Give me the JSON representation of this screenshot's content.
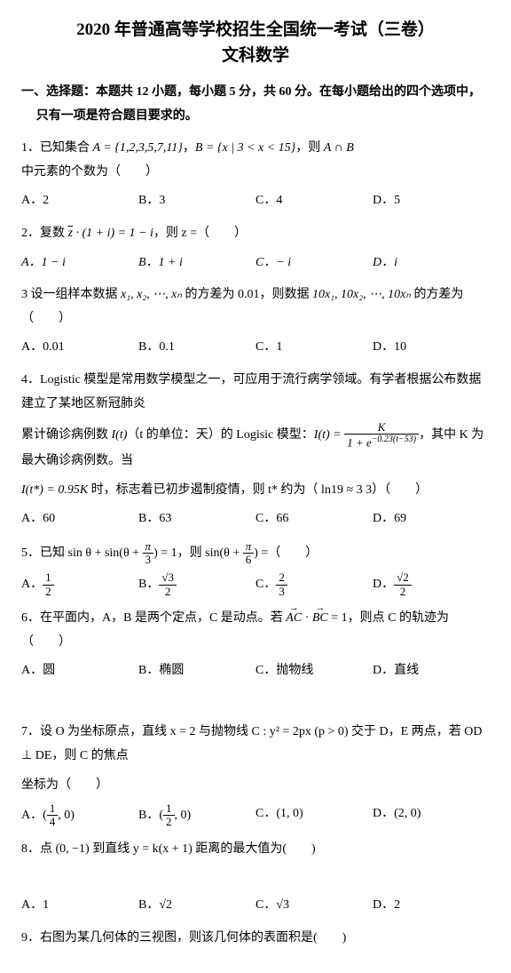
{
  "title_line1": "2020 年普通高等学校招生全国统一考试（三卷）",
  "title_line2": "文科数学",
  "section1": "一、选择题：本题共 12 小题，每小题 5 分，共 60 分。在每小题给出的四个选项中，只有一项是符合题目要求的。",
  "q1": {
    "stem_a": "1．已知集合 ",
    "stem_b": "A = {1,2,3,5,7,11}",
    "stem_c": "，",
    "stem_d": "B = {x | 3 < x < 15}",
    "stem_e": "，则 ",
    "stem_f": "A ∩ B",
    "stem_g": " 中元素的个数为（　　）",
    "A": "A．2",
    "B": "B．3",
    "C": "C．4",
    "D": "D．5"
  },
  "q2": {
    "stem_a": "2．复数 ",
    "stem_b": "z",
    "stem_c": " · (1 + i) = 1 − i",
    "stem_d": "，则 z =（　　）",
    "A": "A．1 − i",
    "B": "B．1 + i",
    "C": "C．− i",
    "D": "D．i"
  },
  "q3": {
    "stem_a": "3 设一组样本数据 ",
    "stem_b": "x₁, x₂, ⋯, xₙ",
    "stem_c": " 的方差为 0.01，则数据 ",
    "stem_d": "10x₁, 10x₂, ⋯, 10xₙ",
    "stem_e": " 的方差为（　　）",
    "A": "A．0.01",
    "B": "B．0.1",
    "C": "C．1",
    "D": "D．10"
  },
  "q4": {
    "line1_a": "4．Logistic 模型是常用数学模型之一，可应用于流行病学领域。有学者根据公布数据建立了某地区新冠肺炎",
    "line2_a": "累计确诊病例数 ",
    "line2_b": "I(t)",
    "line2_c": "（t 的单位：天）的 Logisic 模型：",
    "line2_d": "I(t) = ",
    "frac_num": "K",
    "frac_den_a": "1 + e",
    "frac_den_exp": "−0.23(t−53)",
    "line2_e": "，其中 K 为最大确诊病例数。当",
    "line3_a": "I(t*) = 0.95K",
    "line3_b": " 时，标志着已初步遏制疫情，则 t* 约为（ ln19 ≈ 3 3）（　　）",
    "A": "A．60",
    "B": "B．63",
    "C": "C．66",
    "D": "D．69"
  },
  "q5": {
    "stem_a": "5．已知 sin θ + sin(θ + ",
    "pi3_n": "π",
    "pi3_d": "3",
    "stem_b": ") = 1，则 sin(θ + ",
    "pi6_n": "π",
    "pi6_d": "6",
    "stem_c": ") =（　　）",
    "A_pre": "A．",
    "A_n": "1",
    "A_d": "2",
    "B_pre": "B．",
    "B_n": "√3",
    "B_d": "2",
    "C_pre": "C．",
    "C_n": "2",
    "C_d": "3",
    "D_pre": "D．",
    "D_n": "√2",
    "D_d": "2"
  },
  "q6": {
    "stem_a": "6．在平面内，A，B 是两个定点，C 是动点。若 ",
    "vec1": "AC",
    "dot": " · ",
    "vec2": "BC",
    "stem_b": " = 1，则点 C 的轨迹为（　　）",
    "A": "A．圆",
    "B": "B．椭圆",
    "C": "C．抛物线",
    "D": "D．直线"
  },
  "q7": {
    "stem_a": "7．设 O 为坐标原点，直线 x = 2 与抛物线 C : y² = 2px (p > 0) 交于 D，E 两点，若 OD ⊥ DE，则 C 的焦点",
    "stem_b": "坐标为（　　）",
    "A_pre": "A．(",
    "A_n": "1",
    "A_d": "4",
    "A_post": ", 0)",
    "B_pre": "B．(",
    "B_n": "1",
    "B_d": "2",
    "B_post": ", 0)",
    "C": "C．(1, 0)",
    "D": "D．(2, 0)"
  },
  "q8": {
    "stem": "8．点 (0, −1) 到直线 y = k(x + 1) 距离的最大值为(　　)",
    "A": "A．1",
    "B": "B．√2",
    "C": "C．√3",
    "D": "D．2"
  },
  "q9": {
    "stem": "9．右图为某几何体的三视图，则该几何体的表面积是(　　)"
  }
}
